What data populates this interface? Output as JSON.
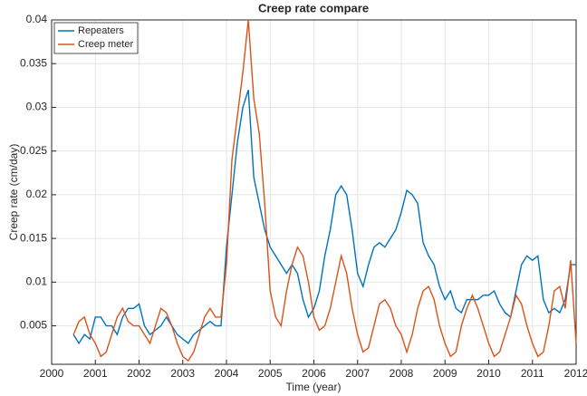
{
  "chart_data": {
    "type": "line",
    "title": "Creep rate compare",
    "x_label": "Time (year)",
    "y_label": "Creep rate (cm/day)",
    "x": [
      2000.5,
      2000.625,
      2000.75,
      2000.875,
      2001,
      2001.125,
      2001.25,
      2001.375,
      2001.5,
      2001.625,
      2001.75,
      2001.875,
      2002,
      2002.125,
      2002.25,
      2002.375,
      2002.5,
      2002.625,
      2002.75,
      2002.875,
      2003,
      2003.125,
      2003.25,
      2003.375,
      2003.5,
      2003.625,
      2003.75,
      2003.875,
      2004,
      2004.125,
      2004.25,
      2004.375,
      2004.5,
      2004.625,
      2004.75,
      2004.875,
      2005,
      2005.125,
      2005.25,
      2005.375,
      2005.5,
      2005.625,
      2005.75,
      2005.875,
      2006,
      2006.125,
      2006.25,
      2006.375,
      2006.5,
      2006.625,
      2006.75,
      2006.875,
      2007,
      2007.125,
      2007.25,
      2007.375,
      2007.5,
      2007.625,
      2007.75,
      2007.875,
      2008,
      2008.125,
      2008.25,
      2008.375,
      2008.5,
      2008.625,
      2008.75,
      2008.875,
      2009,
      2009.125,
      2009.25,
      2009.375,
      2009.5,
      2009.625,
      2009.75,
      2009.875,
      2010,
      2010.125,
      2010.25,
      2010.375,
      2010.5,
      2010.625,
      2010.75,
      2010.875,
      2011,
      2011.125,
      2011.25,
      2011.375,
      2011.5,
      2011.625,
      2011.75,
      2011.875,
      2012
    ],
    "series": [
      {
        "name": "Repeaters",
        "color": "#0072BD",
        "values": [
          0.004,
          0.003,
          0.004,
          0.0035,
          0.006,
          0.006,
          0.005,
          0.005,
          0.004,
          0.006,
          0.007,
          0.007,
          0.0075,
          0.005,
          0.004,
          0.0045,
          0.005,
          0.006,
          0.005,
          0.004,
          0.0035,
          0.003,
          0.004,
          0.0045,
          0.005,
          0.0055,
          0.005,
          0.005,
          0.014,
          0.02,
          0.026,
          0.03,
          0.032,
          0.022,
          0.019,
          0.016,
          0.014,
          0.013,
          0.012,
          0.011,
          0.012,
          0.011,
          0.008,
          0.006,
          0.007,
          0.009,
          0.013,
          0.016,
          0.02,
          0.021,
          0.02,
          0.016,
          0.011,
          0.0095,
          0.012,
          0.014,
          0.0145,
          0.014,
          0.015,
          0.016,
          0.018,
          0.0205,
          0.02,
          0.019,
          0.0145,
          0.013,
          0.012,
          0.0095,
          0.008,
          0.009,
          0.007,
          0.0065,
          0.008,
          0.008,
          0.008,
          0.0085,
          0.0085,
          0.009,
          0.0075,
          0.0065,
          0.006,
          0.009,
          0.012,
          0.013,
          0.0125,
          0.013,
          0.008,
          0.0065,
          0.007,
          0.0065,
          0.008,
          0.012,
          0.012
        ]
      },
      {
        "name": "Creep meter",
        "color": "#D95319",
        "values": [
          0.004,
          0.0055,
          0.006,
          0.004,
          0.003,
          0.0015,
          0.002,
          0.004,
          0.006,
          0.007,
          0.0055,
          0.005,
          0.005,
          0.004,
          0.003,
          0.005,
          0.007,
          0.0065,
          0.005,
          0.003,
          0.0015,
          0.001,
          0.002,
          0.004,
          0.006,
          0.007,
          0.006,
          0.006,
          0.012,
          0.024,
          0.029,
          0.034,
          0.04,
          0.031,
          0.027,
          0.019,
          0.009,
          0.006,
          0.005,
          0.009,
          0.012,
          0.014,
          0.013,
          0.01,
          0.006,
          0.0045,
          0.005,
          0.007,
          0.01,
          0.013,
          0.011,
          0.007,
          0.004,
          0.002,
          0.0025,
          0.005,
          0.0075,
          0.008,
          0.007,
          0.005,
          0.004,
          0.002,
          0.004,
          0.007,
          0.009,
          0.0095,
          0.008,
          0.005,
          0.003,
          0.0015,
          0.002,
          0.005,
          0.007,
          0.0085,
          0.007,
          0.005,
          0.003,
          0.0015,
          0.002,
          0.004,
          0.006,
          0.0085,
          0.0075,
          0.005,
          0.003,
          0.0015,
          0.002,
          0.005,
          0.009,
          0.0095,
          0.007,
          0.0125,
          0.003
        ]
      }
    ],
    "xlim": [
      2000,
      2012
    ],
    "xticks": [
      2000,
      2001,
      2002,
      2003,
      2004,
      2005,
      2006,
      2007,
      2008,
      2009,
      2010,
      2011,
      2012
    ],
    "ylim": [
      0.0006,
      0.04
    ],
    "yticks": [
      0.005,
      0.01,
      0.015,
      0.02,
      0.025,
      0.03,
      0.035,
      0.04
    ],
    "grid": true,
    "legend": "top-left"
  }
}
